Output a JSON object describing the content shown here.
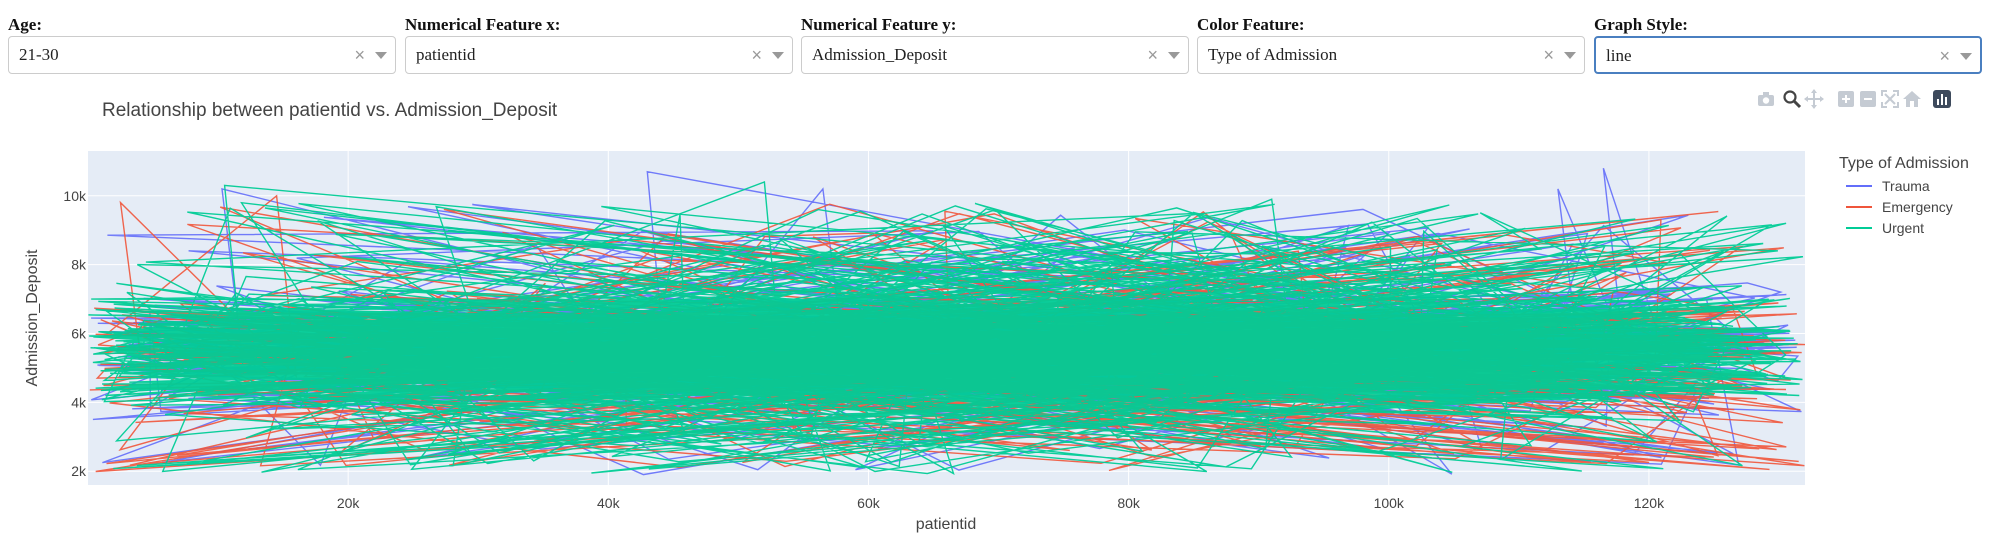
{
  "filters": [
    {
      "label": "Age:",
      "value": "21-30"
    },
    {
      "label": "Numerical Feature x:",
      "value": "patientid"
    },
    {
      "label": "Numerical Feature y:",
      "value": "Admission_Deposit"
    },
    {
      "label": "Color Feature:",
      "value": "Type of Admission"
    },
    {
      "label": "Graph Style:",
      "value": "line"
    }
  ],
  "clear_glyph": "×",
  "modebar_icons": [
    "camera-icon",
    "zoom-icon",
    "pan-icon",
    "zoom-in-icon",
    "zoom-out-icon",
    "autoscale-icon",
    "reset-axes-icon",
    "plotly-logo-icon"
  ],
  "colors": {
    "accent": "#4a7fc0",
    "plot_bg": "#e5ecf6"
  },
  "chart_data": {
    "type": "line",
    "title": "Relationship between patientid vs. Admission_Deposit",
    "xlabel": "patientid",
    "ylabel": "Admission_Deposit",
    "xlim": [
      0,
      132000
    ],
    "ylim": [
      1600,
      11300
    ],
    "x_ticks": [
      20000,
      40000,
      60000,
      80000,
      100000,
      120000
    ],
    "x_tick_labels": [
      "20k",
      "40k",
      "60k",
      "80k",
      "100k",
      "120k"
    ],
    "y_ticks": [
      2000,
      4000,
      6000,
      8000,
      10000
    ],
    "y_tick_labels": [
      "2k",
      "4k",
      "6k",
      "8k",
      "10k"
    ],
    "grid": true,
    "legend": {
      "title": "Type of Admission",
      "position": "right"
    },
    "series": [
      {
        "name": "Trauma",
        "color": "#636efa"
      },
      {
        "name": "Emergency",
        "color": "#ef553b"
      },
      {
        "name": "Urgent",
        "color": "#00cc96"
      }
    ],
    "core_band": [
      3200,
      7800
    ],
    "notable_spikes": [
      {
        "series": "Trauma",
        "x": 116500,
        "y": 10800
      },
      {
        "series": "Trauma",
        "x": 113000,
        "y": 10200
      },
      {
        "series": "Trauma",
        "x": 43000,
        "y": 10700
      },
      {
        "series": "Trauma",
        "x": 56500,
        "y": 10200
      },
      {
        "series": "Trauma",
        "x": 10300,
        "y": 10200
      },
      {
        "series": "Urgent",
        "x": 10500,
        "y": 10300
      },
      {
        "series": "Urgent",
        "x": 52000,
        "y": 10400
      },
      {
        "series": "Emergency",
        "x": 14500,
        "y": 10000
      },
      {
        "series": "Emergency",
        "x": 2500,
        "y": 9800
      },
      {
        "series": "Urgent",
        "x": 91000,
        "y": 9900
      }
    ]
  }
}
